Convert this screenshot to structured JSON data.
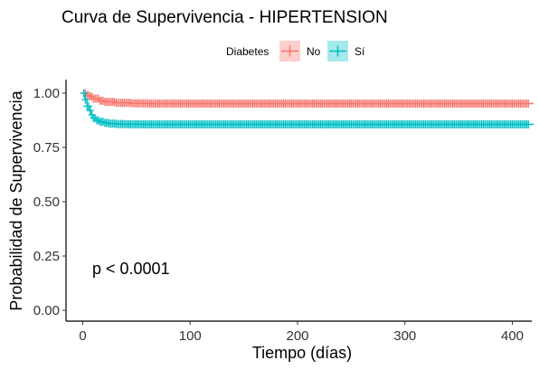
{
  "chart_data": {
    "type": "line",
    "title": "Curva de Supervivencia - HIPERTENSION",
    "xlabel": "Tiempo (días)",
    "ylabel": "Probabilidad de Supervivencia",
    "xlim": [
      0,
      420
    ],
    "ylim": [
      0,
      1
    ],
    "x_ticks": [
      0,
      100,
      200,
      300,
      400
    ],
    "y_ticks": [
      0.0,
      0.25,
      0.5,
      0.75,
      1.0
    ],
    "x_tick_labels": [
      "0",
      "100",
      "200",
      "300",
      "400"
    ],
    "y_tick_labels": [
      "0.00",
      "0.25",
      "0.50",
      "0.75",
      "1.00"
    ],
    "grid": false,
    "legend": {
      "title": "Diabetes",
      "placement": "top",
      "entries": [
        {
          "name": "No",
          "color": "#F8766D"
        },
        {
          "name": "Sí",
          "color": "#00BFC4"
        }
      ]
    },
    "annotation": "p < 0.0001",
    "series": [
      {
        "name": "No",
        "color": "#F8766D",
        "x": [
          0,
          3,
          6,
          10,
          15,
          20,
          30,
          45,
          60,
          420
        ],
        "y": [
          1.0,
          0.99,
          0.985,
          0.975,
          0.965,
          0.96,
          0.955,
          0.953,
          0.952,
          0.952
        ]
      },
      {
        "name": "Sí",
        "color": "#00BFC4",
        "x": [
          0,
          2,
          4,
          6,
          8,
          10,
          13,
          16,
          20,
          25,
          30,
          40,
          55,
          70,
          420
        ],
        "y": [
          1.0,
          0.97,
          0.94,
          0.92,
          0.9,
          0.885,
          0.875,
          0.868,
          0.863,
          0.86,
          0.858,
          0.857,
          0.856,
          0.856,
          0.856
        ]
      }
    ]
  }
}
